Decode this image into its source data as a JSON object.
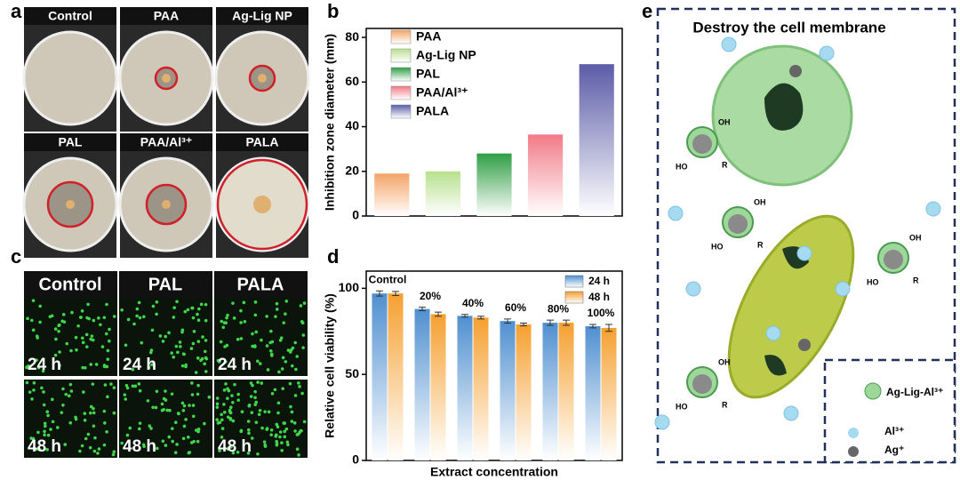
{
  "panel_labels": [
    "a",
    "b",
    "c",
    "d",
    "e"
  ],
  "panel_a": {
    "labels": [
      "Control",
      "PAA",
      "Ag-Lig NP",
      "PAL",
      "PAA/Al³⁺",
      "PALA"
    ]
  },
  "panel_c": {
    "columns": [
      "Control",
      "PAL",
      "PALA"
    ],
    "rows": [
      "24 h",
      "48 h"
    ]
  },
  "panel_e": {
    "title": "Destroy the cell membrane",
    "legend": [
      "Ag-Lig-Al³⁺",
      "Al³⁺",
      "Ag⁺"
    ],
    "molecule_labels": [
      "OH",
      "HO",
      "R"
    ]
  },
  "chart_data": [
    {
      "type": "bar",
      "y_label": "Inhibition zone diameter (mm)",
      "categories": [
        "PAA",
        "Ag-Lig NP",
        "PAL",
        "PAA/Al³⁺",
        "PALA"
      ],
      "values": [
        19,
        20,
        28,
        36.5,
        68
      ],
      "colors": [
        "#f4a366",
        "#b8e08e",
        "#2f9e45",
        "#f27a86",
        "#5b5ba8"
      ],
      "ylim": [
        0,
        84
      ],
      "yticks": [
        0,
        20,
        40,
        60,
        80
      ],
      "legend": "upper left"
    },
    {
      "type": "grouped_bar",
      "x_label": "Extract concentration",
      "y_label": "Relative cell viability (%)",
      "categories": [
        "Control",
        "20%",
        "40%",
        "60%",
        "80%",
        "100%"
      ],
      "series": [
        {
          "name": "24 h",
          "color": "#4f8fd0",
          "values": [
            97,
            88,
            84,
            81,
            80,
            78
          ],
          "errors": [
            1.5,
            1,
            0.8,
            1.2,
            1.5,
            1
          ]
        },
        {
          "name": "48 h",
          "color": "#f5a030",
          "values": [
            97,
            85,
            83,
            79,
            80,
            77
          ],
          "errors": [
            1.2,
            1.2,
            0.8,
            0.8,
            1.5,
            2
          ]
        }
      ],
      "ylim": [
        0,
        110
      ],
      "yticks": [
        0,
        50,
        100
      ],
      "legend": "upper right"
    }
  ]
}
